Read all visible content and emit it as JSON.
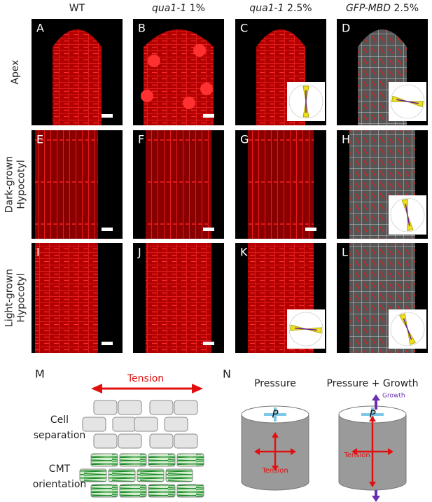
{
  "header": {
    "columns": [
      {
        "text": "WT"
      },
      {
        "italic": "qua1-1",
        "text": "1%"
      },
      {
        "italic": "qua1-1",
        "text": "2.5%"
      },
      {
        "italic": "GFP-MBD",
        "text": "2.5%"
      }
    ]
  },
  "rows": [
    {
      "lines": [
        "Apex"
      ]
    },
    {
      "lines": [
        "Dark-grown",
        "Hypocotyl"
      ]
    },
    {
      "lines": [
        "Light-grown",
        "Hypocotyl"
      ]
    }
  ],
  "panels": [
    "A",
    "B",
    "C",
    "D",
    "E",
    "F",
    "G",
    "H",
    "I",
    "J",
    "K",
    "L"
  ],
  "panel_m": {
    "letter": "M",
    "arrow_label": "Tension",
    "labels": [
      [
        "Cell",
        "separation"
      ],
      [
        "CMT",
        "orientation"
      ]
    ]
  },
  "panel_n": {
    "letter": "N",
    "titles": [
      "Pressure",
      "Pressure + Growth"
    ],
    "pressure_symbol": "P",
    "tension_label": "Tension",
    "growth_label": "Growth"
  }
}
